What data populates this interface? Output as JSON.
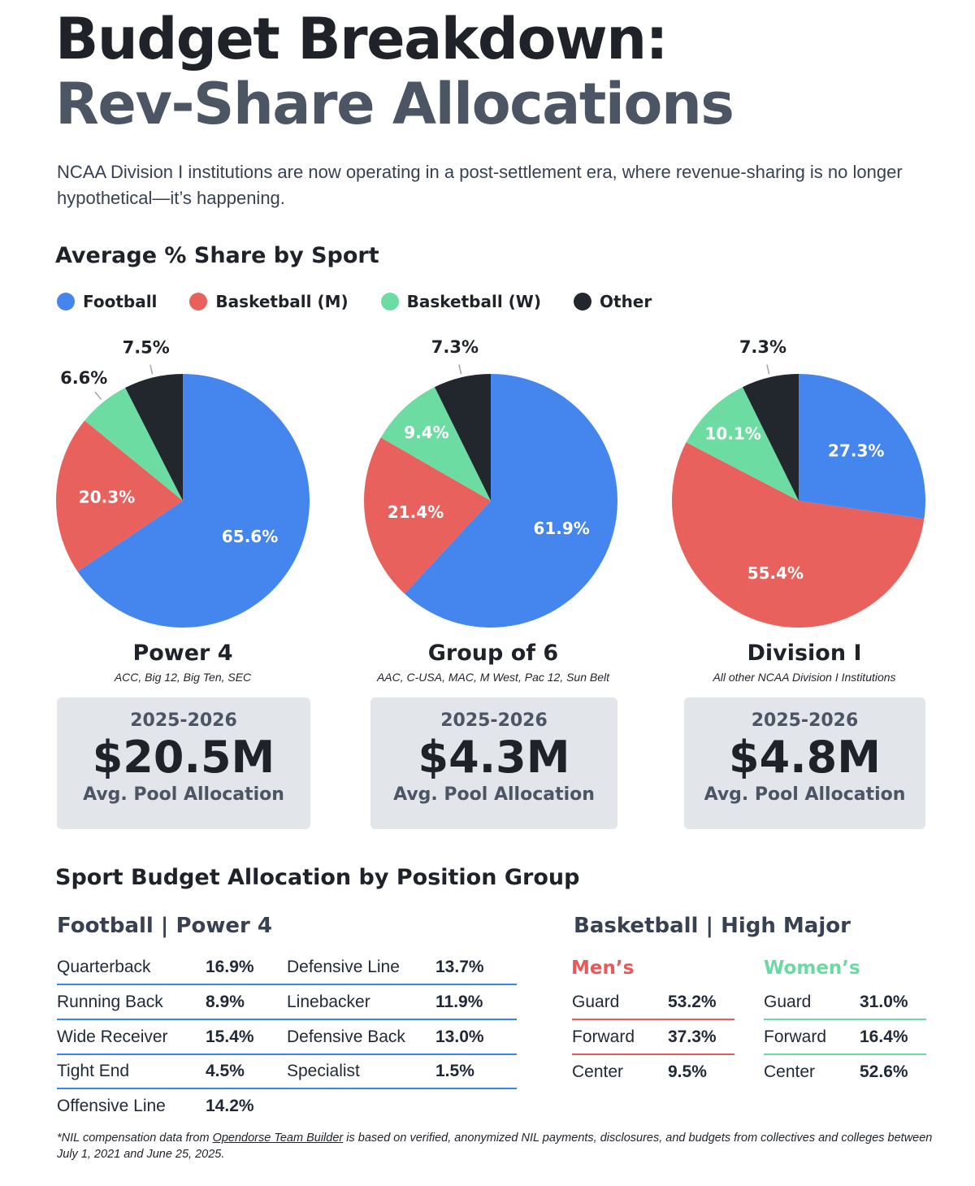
{
  "header": {
    "title_line1": "Budget Breakdown:",
    "title_line2": "Rev-Share Allocations",
    "intro": "NCAA Division I institutions are now operating in a post-settlement era, where revenue-sharing is no longer hypothetical—it’s happening."
  },
  "share_section": {
    "heading": "Average % Share by Sport",
    "legend": [
      {
        "label": "Football",
        "color": "#4486ed"
      },
      {
        "label": "Basketball (M)",
        "color": "#e8615d"
      },
      {
        "label": "Basketball (W)",
        "color": "#6ddca2"
      },
      {
        "label": "Other",
        "color": "#22272e"
      }
    ]
  },
  "chart_data": [
    {
      "type": "pie",
      "title": "Power 4",
      "subtitle": "ACC, Big 12, Big Ten, SEC",
      "categories": [
        "Football",
        "Basketball (M)",
        "Basketball (W)",
        "Other"
      ],
      "values": [
        65.6,
        20.3,
        6.6,
        7.5
      ],
      "labels": [
        "65.6%",
        "20.3%",
        "6.6%",
        "7.5%"
      ]
    },
    {
      "type": "pie",
      "title": "Group of 6",
      "subtitle": "AAC, C-USA, MAC, M West, Pac 12, Sun Belt",
      "categories": [
        "Football",
        "Basketball (M)",
        "Basketball (W)",
        "Other"
      ],
      "values": [
        61.9,
        21.4,
        9.4,
        7.3
      ],
      "labels": [
        "61.9%",
        "21.4%",
        "9.4%",
        "7.3%"
      ]
    },
    {
      "type": "pie",
      "title": "Division I",
      "subtitle": "All other NCAA Division I Institutions",
      "categories": [
        "Football",
        "Basketball (M)",
        "Basketball (W)",
        "Other"
      ],
      "values": [
        27.3,
        55.4,
        10.1,
        7.3
      ],
      "labels": [
        "27.3%",
        "55.4%",
        "10.1%",
        "7.3%"
      ]
    }
  ],
  "cards": [
    {
      "year": "2025-2026",
      "amount": "$20.5M",
      "label": "Avg. Pool Allocation"
    },
    {
      "year": "2025-2026",
      "amount": "$4.3M",
      "label": "Avg. Pool Allocation"
    },
    {
      "year": "2025-2026",
      "amount": "$4.8M",
      "label": "Avg. Pool Allocation"
    }
  ],
  "position_section": {
    "heading": "Sport Budget Allocation by Position Group",
    "football": {
      "heading": "Football | Power 4",
      "left": [
        {
          "name": "Quarterback",
          "value": "16.9%"
        },
        {
          "name": "Running Back",
          "value": "8.9%"
        },
        {
          "name": "Wide Receiver",
          "value": "15.4%"
        },
        {
          "name": "Tight End",
          "value": "4.5%"
        },
        {
          "name": "Offensive Line",
          "value": "14.2%"
        }
      ],
      "right": [
        {
          "name": "Defensive Line",
          "value": "13.7%"
        },
        {
          "name": "Linebacker",
          "value": "11.9%"
        },
        {
          "name": "Defensive Back",
          "value": "13.0%"
        },
        {
          "name": "Specialist",
          "value": "1.5%"
        }
      ]
    },
    "basketball": {
      "heading": "Basketball | High Major",
      "mens_label": "Men’s",
      "womens_label": "Women’s",
      "mens_color": "#e65a59",
      "womens_color": "#6cd9a1",
      "mens": [
        {
          "name": "Guard",
          "value": "53.2%"
        },
        {
          "name": "Forward",
          "value": "37.3%"
        },
        {
          "name": "Center",
          "value": "9.5%"
        }
      ],
      "womens": [
        {
          "name": "Guard",
          "value": "31.0%"
        },
        {
          "name": "Forward",
          "value": "16.4%"
        },
        {
          "name": "Center",
          "value": "52.6%"
        }
      ]
    }
  },
  "footnote": {
    "prefix": "*NIL compensation data from ",
    "link": "Opendorse Team Builder",
    "suffix": " is based on verified, anonymized NIL payments, disclosures, and budgets from collectives and colleges between July 1, 2021 and June 25, 2025."
  }
}
